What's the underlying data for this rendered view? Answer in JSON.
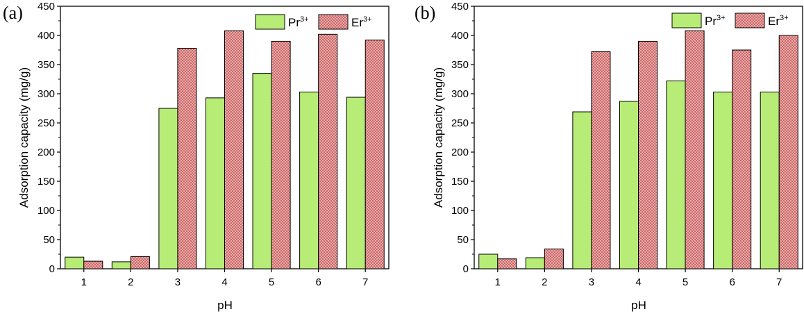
{
  "chart_data": [
    {
      "panel_label": "(a)",
      "type": "bar",
      "xlabel": "pH",
      "ylabel": "Adsorption capacity (mg/g)",
      "categories": [
        "1",
        "2",
        "3",
        "4",
        "5",
        "6",
        "7"
      ],
      "ylim": [
        0,
        450
      ],
      "yticks": [
        "0",
        "50",
        "100",
        "150",
        "200",
        "250",
        "300",
        "350",
        "400",
        "450"
      ],
      "legend_position": "top-right",
      "grid": false,
      "series": [
        {
          "name": "Pr",
          "superscript": "3+",
          "color": "#b7ec76",
          "pattern": "none",
          "values": [
            20,
            12,
            275,
            293,
            335,
            303,
            294
          ]
        },
        {
          "name": "Er",
          "superscript": "3+",
          "color": "#f4a3a3",
          "pattern": "dots",
          "values": [
            13,
            21,
            378,
            408,
            390,
            402,
            392
          ]
        }
      ]
    },
    {
      "panel_label": "(b)",
      "type": "bar",
      "xlabel": "pH",
      "ylabel": "Adsorption capacity (mg/g)",
      "categories": [
        "1",
        "2",
        "3",
        "4",
        "5",
        "6",
        "7"
      ],
      "ylim": [
        0,
        450
      ],
      "yticks": [
        "0",
        "50",
        "100",
        "150",
        "200",
        "250",
        "300",
        "350",
        "400",
        "450"
      ],
      "legend_position": "top-right",
      "grid": false,
      "series": [
        {
          "name": "Pr",
          "superscript": "3+",
          "color": "#b7ec76",
          "pattern": "none",
          "values": [
            25,
            19,
            269,
            287,
            322,
            303,
            303
          ]
        },
        {
          "name": "Er",
          "superscript": "3+",
          "color": "#f4a3a3",
          "pattern": "dots",
          "values": [
            17,
            34,
            372,
            390,
            408,
            375,
            400
          ]
        }
      ]
    }
  ]
}
